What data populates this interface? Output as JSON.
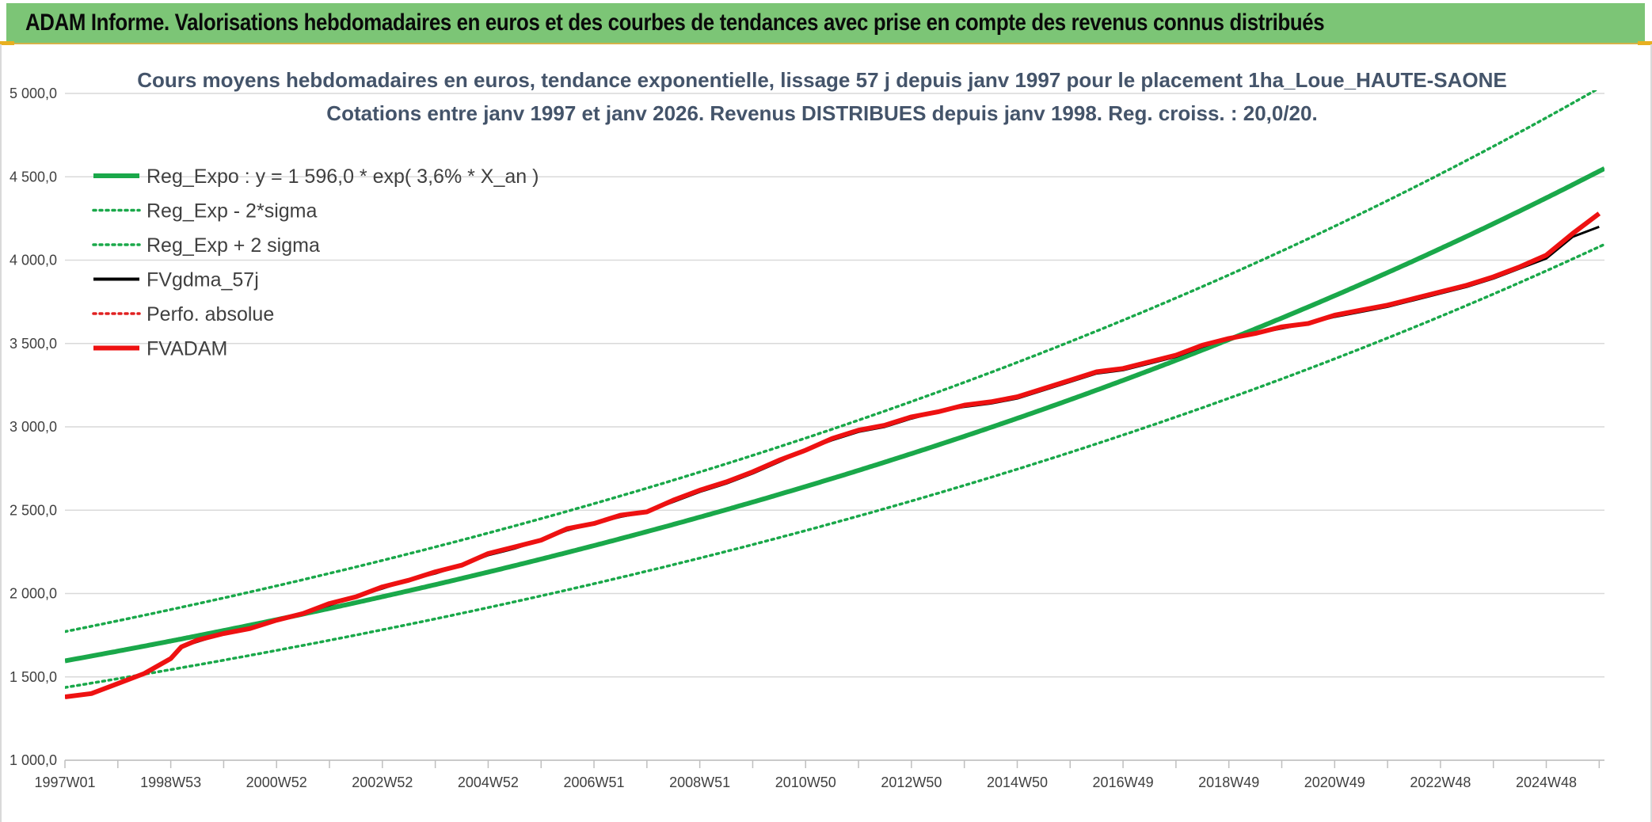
{
  "banner": {
    "title": "ADAM Informe. Valorisations hebdomadaires en euros et des courbes de tendances avec prise en compte des revenus connus distribués"
  },
  "chart_data": {
    "type": "line",
    "title": [
      "Cours moyens hebdomadaires en euros, tendance exponentielle, lissage 57 j depuis janv 1997 pour le placement 1ha_Loue_HAUTE-SAONE",
      "Cotations entre janv 1997 et janv 2026. Revenus DISTRIBUES depuis janv 1998. Reg. croiss. : 20,0/20."
    ],
    "ylim": [
      1000,
      5000
    ],
    "yticks": [
      1000,
      1500,
      2000,
      2500,
      3000,
      3500,
      4000,
      4500,
      5000
    ],
    "ytick_labels": [
      "1 000,0",
      "1 500,0",
      "2 000,0",
      "2 500,0",
      "3 000,0",
      "3 500,0",
      "4 000,0",
      "4 500,0",
      "5 000,0"
    ],
    "xlim": [
      1997.0,
      2026.1
    ],
    "xtick_labels": [
      "1997W01",
      "1998W53",
      "2000W52",
      "2002W52",
      "2004W52",
      "2006W51",
      "2008W51",
      "2010W50",
      "2012W50",
      "2014W50",
      "2016W49",
      "2018W49",
      "2020W49",
      "2022W48",
      "2024W48"
    ],
    "xtick_years": [
      1997,
      1999,
      2001,
      2003,
      2005,
      2007,
      2009,
      2011,
      2013,
      2015,
      2017,
      2019,
      2021,
      2023,
      2025
    ],
    "grid": true,
    "legend_position": "top-left",
    "series": [
      {
        "name": "Reg_Expo : y = 1 596,0 * exp( 3,6% *  X_an )",
        "color": "#1aa84a",
        "style": "solid",
        "width": 6,
        "formula": {
          "a": 1596.0,
          "b": 0.036,
          "factor": 1.0
        }
      },
      {
        "name": "Reg_Exp - 2*sigma",
        "color": "#1aa84a",
        "style": "dotted",
        "width": 3.5,
        "formula": {
          "a": 1596.0,
          "b": 0.036,
          "factor": 0.9
        }
      },
      {
        "name": "Reg_Exp + 2 sigma",
        "color": "#1aa84a",
        "style": "dotted",
        "width": 3.5,
        "formula": {
          "a": 1596.0,
          "b": 0.036,
          "factor": 1.11
        }
      },
      {
        "name": "FVgdma_57j",
        "color": "#000000",
        "style": "solid",
        "width": 3,
        "x": [
          1997.0,
          1997.5,
          1998.0,
          1998.5,
          1999.0,
          1999.2,
          1999.5,
          2000.0,
          2000.5,
          2001.0,
          2001.5,
          2002.0,
          2002.5,
          2003.0,
          2003.5,
          2004.0,
          2004.5,
          2005.0,
          2005.5,
          2006.0,
          2006.5,
          2007.0,
          2007.5,
          2008.0,
          2008.5,
          2009.0,
          2009.5,
          2010.0,
          2010.5,
          2011.0,
          2011.5,
          2012.0,
          2012.5,
          2013.0,
          2013.5,
          2014.0,
          2014.5,
          2015.0,
          2015.5,
          2016.0,
          2016.5,
          2017.0,
          2017.5,
          2018.0,
          2018.5,
          2019.0,
          2019.5,
          2020.0,
          2020.5,
          2021.0,
          2021.5,
          2022.0,
          2022.5,
          2023.0,
          2023.5,
          2024.0,
          2024.5,
          2025.0,
          2025.5,
          2026.0
        ],
        "values": [
          1380,
          1400,
          1460,
          1520,
          1610,
          1680,
          1710,
          1760,
          1790,
          1840,
          1880,
          1930,
          1980,
          2030,
          2080,
          2120,
          2170,
          2230,
          2270,
          2320,
          2380,
          2420,
          2460,
          2490,
          2550,
          2610,
          2660,
          2720,
          2790,
          2860,
          2920,
          2970,
          3000,
          3050,
          3090,
          3120,
          3140,
          3170,
          3220,
          3270,
          3320,
          3340,
          3380,
          3420,
          3480,
          3530,
          3560,
          3590,
          3620,
          3660,
          3690,
          3720,
          3760,
          3800,
          3840,
          3890,
          3950,
          4010,
          4140,
          4200
        ]
      },
      {
        "name": "Perfo. absolue",
        "color": "#e02020",
        "style": "dotted",
        "width": 3,
        "x": [],
        "values": []
      },
      {
        "name": "FVADAM",
        "color": "#ee1111",
        "style": "solid",
        "width": 6,
        "x": [
          1997.0,
          1997.5,
          1998.0,
          1998.5,
          1999.0,
          1999.2,
          1999.5,
          2000.0,
          2000.5,
          2001.0,
          2001.5,
          2002.0,
          2002.5,
          2003.0,
          2003.5,
          2004.0,
          2004.5,
          2005.0,
          2005.5,
          2006.0,
          2006.5,
          2007.0,
          2007.5,
          2008.0,
          2008.5,
          2009.0,
          2009.5,
          2010.0,
          2010.5,
          2011.0,
          2011.5,
          2012.0,
          2012.5,
          2013.0,
          2013.5,
          2014.0,
          2014.5,
          2015.0,
          2015.5,
          2016.0,
          2016.5,
          2017.0,
          2017.5,
          2018.0,
          2018.5,
          2019.0,
          2019.5,
          2020.0,
          2020.5,
          2021.0,
          2021.5,
          2022.0,
          2022.5,
          2023.0,
          2023.5,
          2024.0,
          2024.5,
          2025.0,
          2025.5,
          2026.0
        ],
        "values": [
          1380,
          1400,
          1460,
          1520,
          1610,
          1680,
          1720,
          1760,
          1790,
          1840,
          1880,
          1940,
          1980,
          2040,
          2080,
          2130,
          2170,
          2240,
          2280,
          2320,
          2390,
          2420,
          2470,
          2490,
          2560,
          2620,
          2670,
          2730,
          2800,
          2860,
          2930,
          2980,
          3010,
          3060,
          3090,
          3130,
          3150,
          3180,
          3230,
          3280,
          3330,
          3350,
          3390,
          3430,
          3490,
          3530,
          3560,
          3600,
          3620,
          3670,
          3700,
          3730,
          3770,
          3810,
          3850,
          3900,
          3960,
          4030,
          4160,
          4280
        ]
      }
    ]
  }
}
